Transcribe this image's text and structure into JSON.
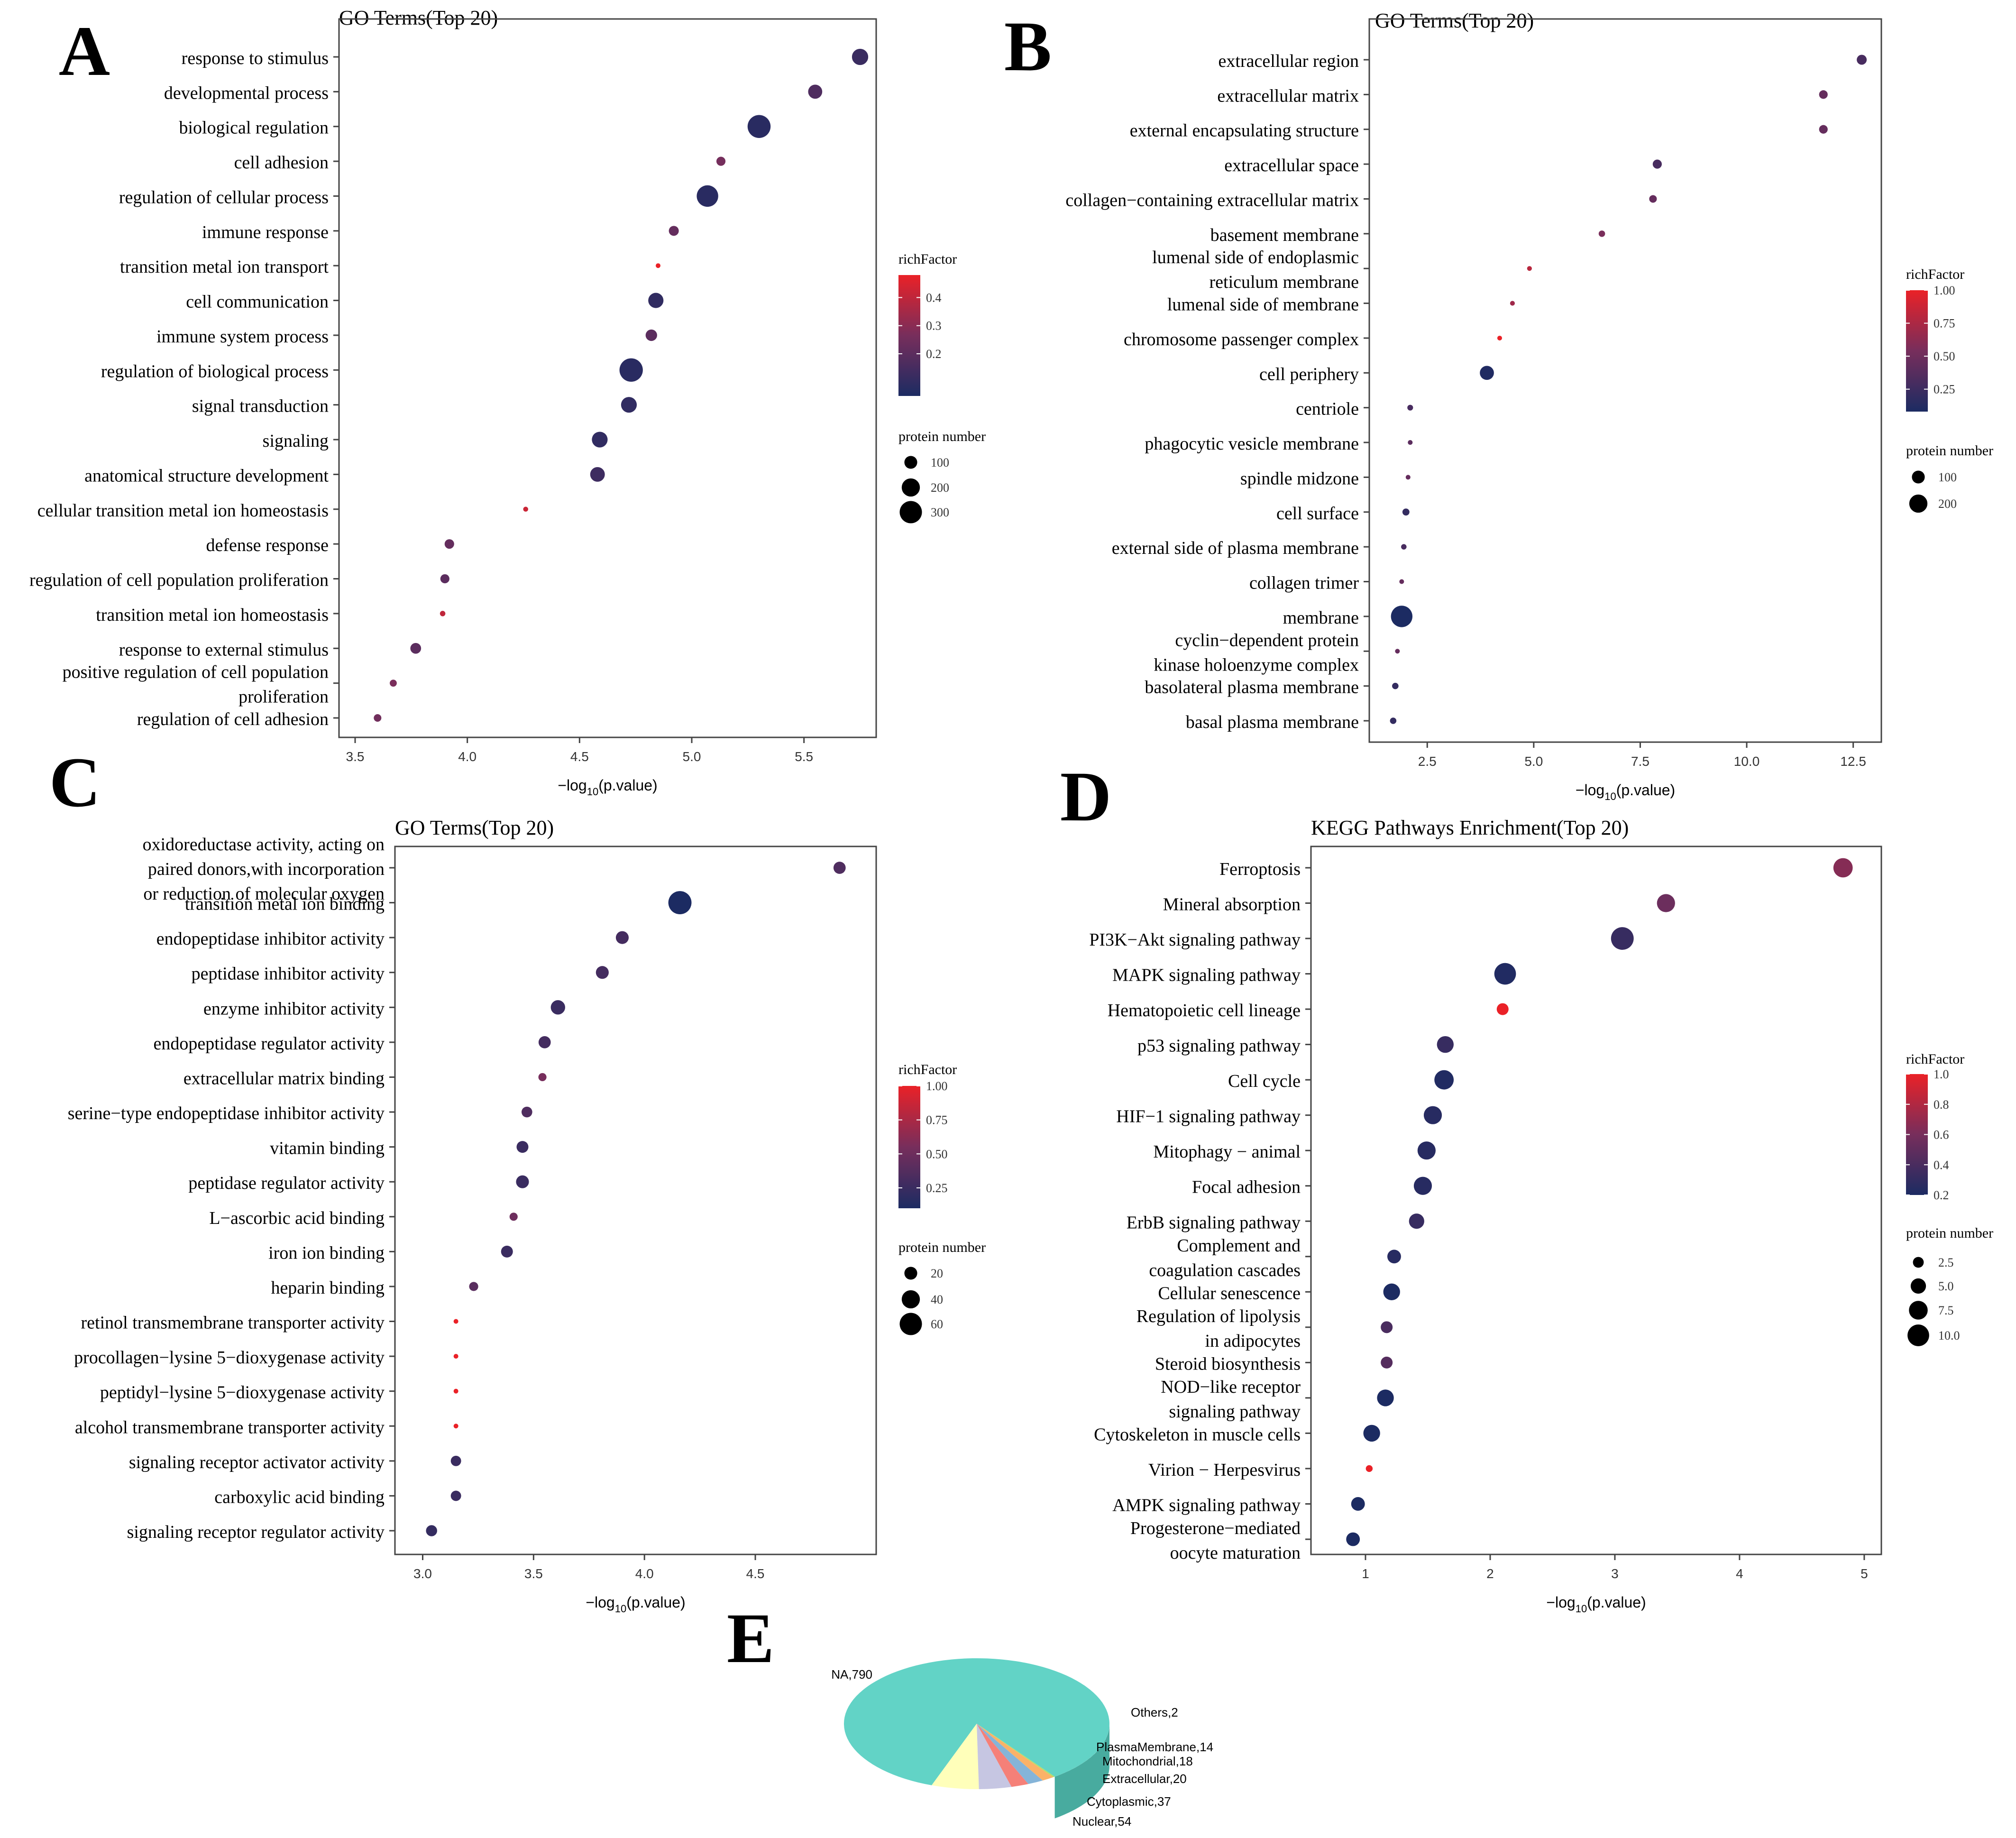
{
  "chart_data": [
    {
      "id": "A",
      "type": "scatter",
      "panel_letter": "A",
      "title": "GO Terms(Top 20)",
      "xlabel": "−log10(p.value)",
      "xlabel_main": "−log",
      "xlabel_sub": "10",
      "xlabel_tail": "(p.value)",
      "xlim": [
        3.5,
        5.75
      ],
      "xticks": [
        3.5,
        4.0,
        4.5,
        5.0,
        5.5
      ],
      "xtick_labels": [
        "3.5",
        "4.0",
        "4.5",
        "5.0",
        "5.5"
      ],
      "color_legend": {
        "title": "richFactor",
        "min": 0.05,
        "max": 0.48,
        "ticks": [
          0.2,
          0.3,
          0.4
        ],
        "tick_labels": [
          "0.2",
          "0.3",
          "0.4"
        ]
      },
      "size_legend": {
        "title": "protein number",
        "values": [
          100,
          200,
          300
        ],
        "labels": [
          "100",
          "200",
          "300"
        ],
        "ref_max": 340
      },
      "terms": [
        {
          "label": [
            "response to stimulus"
          ],
          "x": 5.75,
          "size": 160,
          "rich": 0.12
        },
        {
          "label": [
            "developmental process"
          ],
          "x": 5.55,
          "size": 120,
          "rich": 0.17
        },
        {
          "label": [
            "biological regulation"
          ],
          "x": 5.3,
          "size": 320,
          "rich": 0.08
        },
        {
          "label": [
            "cell adhesion"
          ],
          "x": 5.13,
          "size": 50,
          "rich": 0.26
        },
        {
          "label": [
            "regulation of cellular process"
          ],
          "x": 5.07,
          "size": 280,
          "rich": 0.08
        },
        {
          "label": [
            "immune response"
          ],
          "x": 4.92,
          "size": 60,
          "rich": 0.22
        },
        {
          "label": [
            "transition metal ion transport"
          ],
          "x": 4.85,
          "size": 10,
          "rich": 0.48
        },
        {
          "label": [
            "cell communication"
          ],
          "x": 4.84,
          "size": 140,
          "rich": 0.1
        },
        {
          "label": [
            "immune system process"
          ],
          "x": 4.82,
          "size": 80,
          "rich": 0.2
        },
        {
          "label": [
            "regulation of biological process"
          ],
          "x": 4.73,
          "size": 330,
          "rich": 0.08
        },
        {
          "label": [
            "signal transduction"
          ],
          "x": 4.72,
          "size": 150,
          "rich": 0.1
        },
        {
          "label": [
            "signaling"
          ],
          "x": 4.59,
          "size": 150,
          "rich": 0.1
        },
        {
          "label": [
            "anatomical structure development"
          ],
          "x": 4.58,
          "size": 130,
          "rich": 0.13
        },
        {
          "label": [
            "cellular transition metal ion homeostasis"
          ],
          "x": 4.26,
          "size": 15,
          "rich": 0.42
        },
        {
          "label": [
            "defense response"
          ],
          "x": 3.92,
          "size": 55,
          "rich": 0.22
        },
        {
          "label": [
            "regulation of cell population proliferation"
          ],
          "x": 3.9,
          "size": 50,
          "rich": 0.2
        },
        {
          "label": [
            "transition metal ion homeostasis"
          ],
          "x": 3.89,
          "size": 18,
          "rich": 0.4
        },
        {
          "label": [
            "response to external stimulus"
          ],
          "x": 3.77,
          "size": 70,
          "rich": 0.2
        },
        {
          "label": [
            "positive regulation of cell population",
            "proliferation"
          ],
          "x": 3.67,
          "size": 30,
          "rich": 0.27
        },
        {
          "label": [
            "regulation of cell adhesion"
          ],
          "x": 3.6,
          "size": 35,
          "rich": 0.25
        }
      ]
    },
    {
      "id": "B",
      "type": "scatter",
      "panel_letter": "B",
      "title": "GO Terms(Top 20)",
      "xlabel": "−log10(p.value)",
      "xlabel_main": "−log",
      "xlabel_sub": "10",
      "xlabel_tail": "(p.value)",
      "xlim": [
        1.5,
        12.8
      ],
      "xticks": [
        2.5,
        5.0,
        7.5,
        10.0,
        12.5
      ],
      "xtick_labels": [
        "2.5",
        "5.0",
        "7.5",
        "10.0",
        "12.5"
      ],
      "color_legend": {
        "title": "richFactor",
        "min": 0.08,
        "max": 1.0,
        "ticks": [
          0.25,
          0.5,
          0.75,
          1.0
        ],
        "tick_labels": [
          "0.25",
          "0.50",
          "0.75",
          "1.00"
        ]
      },
      "size_legend": {
        "title": "protein number",
        "values": [
          100,
          200
        ],
        "labels": [
          "100",
          "200"
        ],
        "ref_max": 340
      },
      "terms": [
        {
          "label": [
            "extracellular region"
          ],
          "x": 12.7,
          "size": 60,
          "rich": 0.3
        },
        {
          "label": [
            "extracellular matrix"
          ],
          "x": 11.8,
          "size": 45,
          "rich": 0.45
        },
        {
          "label": [
            "external encapsulating structure"
          ],
          "x": 11.8,
          "size": 45,
          "rich": 0.45
        },
        {
          "label": [
            "extracellular space"
          ],
          "x": 7.9,
          "size": 50,
          "rich": 0.3
        },
        {
          "label": [
            "collagen−containing extracellular matrix"
          ],
          "x": 7.8,
          "size": 35,
          "rich": 0.45
        },
        {
          "label": [
            "basement membrane"
          ],
          "x": 6.6,
          "size": 25,
          "rich": 0.55
        },
        {
          "label": [
            "lumenal side of endoplasmic",
            "reticulum membrane"
          ],
          "x": 4.9,
          "size": 14,
          "rich": 0.8
        },
        {
          "label": [
            "lumenal side of membrane"
          ],
          "x": 4.5,
          "size": 14,
          "rich": 0.7
        },
        {
          "label": [
            "chromosome passenger complex"
          ],
          "x": 4.2,
          "size": 10,
          "rich": 1.0
        },
        {
          "label": [
            "cell periphery"
          ],
          "x": 3.9,
          "size": 120,
          "rich": 0.1
        },
        {
          "label": [
            "centriole"
          ],
          "x": 2.1,
          "size": 20,
          "rich": 0.3
        },
        {
          "label": [
            "phagocytic vesicle membrane"
          ],
          "x": 2.1,
          "size": 14,
          "rich": 0.4
        },
        {
          "label": [
            "spindle midzone"
          ],
          "x": 2.05,
          "size": 12,
          "rich": 0.45
        },
        {
          "label": [
            "cell surface"
          ],
          "x": 2.0,
          "size": 30,
          "rich": 0.2
        },
        {
          "label": [
            "external side of plasma membrane"
          ],
          "x": 1.95,
          "size": 18,
          "rich": 0.3
        },
        {
          "label": [
            "collagen trimer"
          ],
          "x": 1.9,
          "size": 12,
          "rich": 0.45
        },
        {
          "label": [
            "membrane"
          ],
          "x": 1.9,
          "size": 280,
          "rich": 0.08
        },
        {
          "label": [
            "cyclin−dependent protein",
            "kinase holoenzyme complex"
          ],
          "x": 1.8,
          "size": 10,
          "rich": 0.45
        },
        {
          "label": [
            "basolateral plasma membrane"
          ],
          "x": 1.75,
          "size": 25,
          "rich": 0.2
        },
        {
          "label": [
            "basal plasma membrane"
          ],
          "x": 1.7,
          "size": 25,
          "rich": 0.2
        }
      ]
    },
    {
      "id": "C",
      "type": "scatter",
      "panel_letter": "C",
      "title": "GO Terms(Top 20)",
      "xlabel": "−log10(p.value)",
      "xlabel_main": "−log",
      "xlabel_sub": "10",
      "xlabel_tail": "(p.value)",
      "xlim": [
        2.94,
        4.98
      ],
      "xticks": [
        3.0,
        3.5,
        4.0,
        4.5
      ],
      "xtick_labels": [
        "3.0",
        "3.5",
        "4.0",
        "4.5"
      ],
      "color_legend": {
        "title": "richFactor",
        "min": 0.1,
        "max": 1.0,
        "ticks": [
          0.25,
          0.5,
          0.75,
          1.0
        ],
        "tick_labels": [
          "0.25",
          "0.50",
          "0.75",
          "1.00"
        ]
      },
      "size_legend": {
        "title": "protein number",
        "values": [
          20,
          40,
          60
        ],
        "labels": [
          "20",
          "40",
          "60"
        ],
        "ref_max": 68
      },
      "terms": [
        {
          "label": [
            "oxidoreductase activity, acting on",
            "paired donors,with incorporation",
            "or reduction of molecular oxygen"
          ],
          "x": 4.88,
          "size": 18,
          "rich": 0.35
        },
        {
          "label": [
            "transition metal ion binding"
          ],
          "x": 4.16,
          "size": 65,
          "rich": 0.1
        },
        {
          "label": [
            "endopeptidase inhibitor activity"
          ],
          "x": 3.9,
          "size": 20,
          "rich": 0.3
        },
        {
          "label": [
            "peptidase inhibitor activity"
          ],
          "x": 3.81,
          "size": 20,
          "rich": 0.3
        },
        {
          "label": [
            "enzyme inhibitor activity"
          ],
          "x": 3.61,
          "size": 25,
          "rich": 0.25
        },
        {
          "label": [
            "endopeptidase regulator activity"
          ],
          "x": 3.55,
          "size": 18,
          "rich": 0.3
        },
        {
          "label": [
            "extracellular matrix binding"
          ],
          "x": 3.54,
          "size": 8,
          "rich": 0.55
        },
        {
          "label": [
            "serine−type endopeptidase inhibitor activity"
          ],
          "x": 3.47,
          "size": 14,
          "rich": 0.35
        },
        {
          "label": [
            "vitamin binding"
          ],
          "x": 3.45,
          "size": 17,
          "rich": 0.25
        },
        {
          "label": [
            "peptidase regulator activity"
          ],
          "x": 3.45,
          "size": 20,
          "rich": 0.25
        },
        {
          "label": [
            "L−ascorbic acid binding"
          ],
          "x": 3.41,
          "size": 8,
          "rich": 0.5
        },
        {
          "label": [
            "iron ion binding"
          ],
          "x": 3.38,
          "size": 17,
          "rich": 0.25
        },
        {
          "label": [
            "heparin binding"
          ],
          "x": 3.23,
          "size": 10,
          "rich": 0.4
        },
        {
          "label": [
            "retinol transmembrane transporter activity"
          ],
          "x": 3.15,
          "size": 2,
          "rich": 1.0
        },
        {
          "label": [
            "procollagen−lysine 5−dioxygenase activity"
          ],
          "x": 3.15,
          "size": 2,
          "rich": 1.0
        },
        {
          "label": [
            "peptidyl−lysine 5−dioxygenase activity"
          ],
          "x": 3.15,
          "size": 2,
          "rich": 1.0
        },
        {
          "label": [
            "alcohol transmembrane transporter activity"
          ],
          "x": 3.15,
          "size": 2,
          "rich": 1.0
        },
        {
          "label": [
            "signaling receptor activator activity"
          ],
          "x": 3.15,
          "size": 13,
          "rich": 0.25
        },
        {
          "label": [
            "carboxylic acid binding"
          ],
          "x": 3.15,
          "size": 13,
          "rich": 0.25
        },
        {
          "label": [
            "signaling receptor regulator activity"
          ],
          "x": 3.04,
          "size": 15,
          "rich": 0.22
        }
      ]
    },
    {
      "id": "D",
      "type": "scatter",
      "panel_letter": "D",
      "title": "KEGG Pathways Enrichment(Top 20)",
      "xlabel": "−log10(p.value)",
      "xlabel_main": "−log",
      "xlabel_sub": "10",
      "xlabel_tail": "(p.value)",
      "xlim": [
        0.7,
        5.0
      ],
      "xticks": [
        1,
        2,
        3,
        4,
        5
      ],
      "xtick_labels": [
        "1",
        "2",
        "3",
        "4",
        "5"
      ],
      "color_legend": {
        "title": "richFactor",
        "min": 0.2,
        "max": 1.0,
        "ticks": [
          0.2,
          0.4,
          0.6,
          0.8,
          1.0
        ],
        "tick_labels": [
          "0.2",
          "0.4",
          "0.6",
          "0.8",
          "1.0"
        ]
      },
      "size_legend": {
        "title": "protein number",
        "values": [
          2.5,
          5.0,
          7.5,
          10.0
        ],
        "labels": [
          "2.5",
          "5.0",
          "7.5",
          "10.0"
        ],
        "ref_max": 12
      },
      "terms": [
        {
          "label": [
            "Ferroptosis"
          ],
          "x": 4.83,
          "size": 8,
          "rich": 0.65
        },
        {
          "label": [
            "Mineral absorption"
          ],
          "x": 3.41,
          "size": 7,
          "rich": 0.55
        },
        {
          "label": [
            "PI3K−Akt signaling pathway"
          ],
          "x": 3.06,
          "size": 11,
          "rich": 0.32
        },
        {
          "label": [
            "MAPK signaling pathway"
          ],
          "x": 2.12,
          "size": 10,
          "rich": 0.22
        },
        {
          "label": [
            "Hematopoietic cell lineage"
          ],
          "x": 2.1,
          "size": 3,
          "rich": 1.0
        },
        {
          "label": [
            "p53 signaling pathway"
          ],
          "x": 1.64,
          "size": 6,
          "rich": 0.32
        },
        {
          "label": [
            "Cell cycle"
          ],
          "x": 1.63,
          "size": 8,
          "rich": 0.22
        },
        {
          "label": [
            "HIF−1 signaling pathway"
          ],
          "x": 1.54,
          "size": 7,
          "rich": 0.25
        },
        {
          "label": [
            "Mitophagy − animal"
          ],
          "x": 1.49,
          "size": 7,
          "rich": 0.25
        },
        {
          "label": [
            "Focal adhesion"
          ],
          "x": 1.46,
          "size": 7,
          "rich": 0.25
        },
        {
          "label": [
            "ErbB signaling pathway"
          ],
          "x": 1.41,
          "size": 5,
          "rich": 0.32
        },
        {
          "label": [
            "Complement and",
            "coagulation cascades"
          ],
          "x": 1.23,
          "size": 4,
          "rich": 0.25
        },
        {
          "label": [
            "Cellular senescence"
          ],
          "x": 1.21,
          "size": 6,
          "rich": 0.2
        },
        {
          "label": [
            "Regulation of lipolysis",
            "in adipocytes"
          ],
          "x": 1.17,
          "size": 3,
          "rich": 0.4
        },
        {
          "label": [
            "Steroid biosynthesis"
          ],
          "x": 1.17,
          "size": 3,
          "rich": 0.45
        },
        {
          "label": [
            "NOD−like receptor",
            "signaling pathway"
          ],
          "x": 1.16,
          "size": 6,
          "rich": 0.2
        },
        {
          "label": [
            "Cytoskeleton in muscle cells"
          ],
          "x": 1.05,
          "size": 6,
          "rich": 0.2
        },
        {
          "label": [
            "Virion − Herpesvirus"
          ],
          "x": 1.03,
          "size": 1,
          "rich": 1.0
        },
        {
          "label": [
            "AMPK signaling pathway"
          ],
          "x": 0.94,
          "size": 4,
          "rich": 0.2
        },
        {
          "label": [
            "Progesterone−mediated",
            "oocyte maturation"
          ],
          "x": 0.9,
          "size": 4,
          "rich": 0.2
        }
      ]
    },
    {
      "id": "E",
      "type": "pie",
      "panel_letter": "E",
      "slices": [
        {
          "name": "NA",
          "value": 790,
          "label": "NA,790",
          "color": "#62d3c6",
          "side": "#48ab9f"
        },
        {
          "name": "Nuclear",
          "value": 54,
          "label": "Nuclear,54",
          "color": "#ffffba",
          "side": "#d2d29a"
        },
        {
          "name": "Cytoplasmic",
          "value": 37,
          "label": "Cytoplasmic,37",
          "color": "#c6c6e2",
          "side": "#a2a2c0"
        },
        {
          "name": "Extracellular",
          "value": 20,
          "label": "Extracellular,20",
          "color": "#f58078",
          "side": "#cf645d"
        },
        {
          "name": "Mitochondrial",
          "value": 18,
          "label": "Mitochondrial,18",
          "color": "#85b4d8",
          "side": "#6793b7"
        },
        {
          "name": "PlasmaMembrane",
          "value": 14,
          "label": "PlasmaMembrane,14",
          "color": "#fbb268",
          "side": "#d2914f"
        },
        {
          "name": "Others",
          "value": 2,
          "label": "Others,2",
          "color": "#b3de6a",
          "side": "#90b951"
        }
      ]
    }
  ],
  "colors": {
    "low": "#1c2b62",
    "mid": "#772e5c",
    "high": "#ea2127",
    "axis": "#444444",
    "text": "#000000"
  }
}
